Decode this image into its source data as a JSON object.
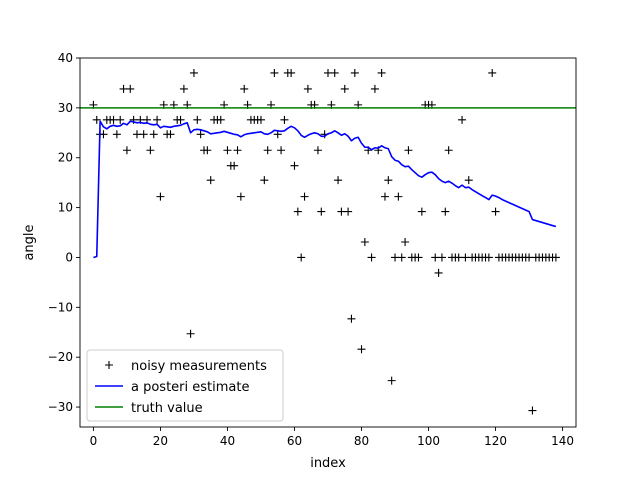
{
  "chart_data": {
    "type": "line",
    "title": "",
    "xlabel": "index",
    "ylabel": "angle",
    "xlim": [
      -4,
      144
    ],
    "ylim": [
      -34,
      40
    ],
    "xticks": [
      0,
      20,
      40,
      60,
      80,
      100,
      120,
      140
    ],
    "yticks": [
      -30,
      -20,
      -10,
      0,
      10,
      20,
      30,
      40
    ],
    "grid": false,
    "legend_position": "lower-left",
    "series": [
      {
        "name": "noisy measurements",
        "kind": "scatter",
        "marker": "+",
        "color": "#000000",
        "points": [
          [
            0,
            30.6
          ],
          [
            1,
            27.6
          ],
          [
            2,
            24.7
          ],
          [
            3,
            24.7
          ],
          [
            4,
            27.6
          ],
          [
            5,
            27.6
          ],
          [
            6,
            27.6
          ],
          [
            7,
            24.7
          ],
          [
            8,
            27.6
          ],
          [
            9,
            33.8
          ],
          [
            10,
            21.5
          ],
          [
            11,
            33.8
          ],
          [
            12,
            27.6
          ],
          [
            13,
            24.7
          ],
          [
            14,
            27.6
          ],
          [
            15,
            24.7
          ],
          [
            16,
            27.6
          ],
          [
            17,
            21.5
          ],
          [
            18,
            24.7
          ],
          [
            19,
            27.6
          ],
          [
            20,
            12.2
          ],
          [
            21,
            30.6
          ],
          [
            22,
            24.7
          ],
          [
            23,
            24.7
          ],
          [
            24,
            30.6
          ],
          [
            25,
            27.6
          ],
          [
            26,
            27.6
          ],
          [
            27,
            33.8
          ],
          [
            28,
            30.6
          ],
          [
            29,
            -15.3
          ],
          [
            30,
            37.0
          ],
          [
            31,
            27.6
          ],
          [
            32,
            24.7
          ],
          [
            33,
            21.5
          ],
          [
            34,
            21.5
          ],
          [
            35,
            15.5
          ],
          [
            36,
            27.6
          ],
          [
            37,
            27.6
          ],
          [
            38,
            27.6
          ],
          [
            39,
            30.6
          ],
          [
            40,
            21.5
          ],
          [
            41,
            18.4
          ],
          [
            42,
            18.4
          ],
          [
            43,
            21.5
          ],
          [
            44,
            12.2
          ],
          [
            45,
            33.8
          ],
          [
            46,
            30.6
          ],
          [
            47,
            27.6
          ],
          [
            48,
            27.6
          ],
          [
            49,
            27.6
          ],
          [
            50,
            27.6
          ],
          [
            51,
            15.5
          ],
          [
            52,
            21.5
          ],
          [
            53,
            30.6
          ],
          [
            54,
            37.0
          ],
          [
            55,
            24.7
          ],
          [
            56,
            21.5
          ],
          [
            57,
            27.6
          ],
          [
            58,
            37.0
          ],
          [
            59,
            37.0
          ],
          [
            60,
            18.4
          ],
          [
            61,
            9.2
          ],
          [
            62,
            0
          ],
          [
            63,
            12.2
          ],
          [
            64,
            33.8
          ],
          [
            65,
            30.6
          ],
          [
            66,
            30.6
          ],
          [
            67,
            21.5
          ],
          [
            68,
            9.2
          ],
          [
            69,
            24.7
          ],
          [
            70,
            37.0
          ],
          [
            71,
            30.6
          ],
          [
            72,
            37.0
          ],
          [
            73,
            15.5
          ],
          [
            74,
            9.2
          ],
          [
            75,
            33.8
          ],
          [
            76,
            9.2
          ],
          [
            77,
            -12.3
          ],
          [
            78,
            37.0
          ],
          [
            79,
            30.6
          ],
          [
            80,
            -18.4
          ],
          [
            81,
            3.1
          ],
          [
            82,
            21.5
          ],
          [
            83,
            0
          ],
          [
            84,
            33.8
          ],
          [
            85,
            21.5
          ],
          [
            86,
            37.0
          ],
          [
            87,
            12.2
          ],
          [
            88,
            15.5
          ],
          [
            89,
            -24.7
          ],
          [
            90,
            0
          ],
          [
            91,
            12.2
          ],
          [
            92,
            0
          ],
          [
            93,
            3.1
          ],
          [
            94,
            21.5
          ],
          [
            95,
            0
          ],
          [
            96,
            0
          ],
          [
            97,
            0
          ],
          [
            98,
            9.2
          ],
          [
            99,
            30.6
          ],
          [
            100,
            30.6
          ],
          [
            101,
            30.6
          ],
          [
            102,
            0
          ],
          [
            103,
            -3.1
          ],
          [
            104,
            0
          ],
          [
            105,
            9.2
          ],
          [
            106,
            21.5
          ],
          [
            107,
            0
          ],
          [
            108,
            0
          ],
          [
            109,
            0
          ],
          [
            110,
            27.6
          ],
          [
            111,
            0
          ],
          [
            112,
            15.5
          ],
          [
            113,
            0
          ],
          [
            114,
            0
          ],
          [
            115,
            0
          ],
          [
            116,
            0
          ],
          [
            117,
            0
          ],
          [
            118,
            0
          ],
          [
            119,
            37.0
          ],
          [
            120,
            9.2
          ],
          [
            121,
            0
          ],
          [
            122,
            0
          ],
          [
            123,
            0
          ],
          [
            124,
            0
          ],
          [
            125,
            0
          ],
          [
            126,
            0
          ],
          [
            127,
            0
          ],
          [
            128,
            0
          ],
          [
            129,
            0
          ],
          [
            130,
            0
          ],
          [
            131,
            -30.7
          ],
          [
            132,
            0
          ],
          [
            133,
            0
          ],
          [
            134,
            0
          ],
          [
            135,
            0
          ],
          [
            136,
            0
          ],
          [
            137,
            0
          ],
          [
            138,
            0
          ]
        ]
      },
      {
        "name": "a posteri estimate",
        "kind": "line",
        "color": "#0000ff",
        "points": [
          [
            0,
            0
          ],
          [
            1,
            0.2
          ],
          [
            2,
            27.3
          ],
          [
            3,
            26.2
          ],
          [
            4,
            25.8
          ],
          [
            5,
            26.3
          ],
          [
            6,
            26.5
          ],
          [
            7,
            26.3
          ],
          [
            8,
            26.4
          ],
          [
            9,
            26.9
          ],
          [
            10,
            26.6
          ],
          [
            11,
            27.3
          ],
          [
            12,
            27.2
          ],
          [
            13,
            27.0
          ],
          [
            14,
            27.1
          ],
          [
            15,
            26.9
          ],
          [
            16,
            27.0
          ],
          [
            17,
            26.7
          ],
          [
            18,
            26.6
          ],
          [
            19,
            26.7
          ],
          [
            20,
            26.0
          ],
          [
            21,
            26.3
          ],
          [
            22,
            26.2
          ],
          [
            23,
            26.1
          ],
          [
            24,
            26.3
          ],
          [
            25,
            26.4
          ],
          [
            26,
            26.5
          ],
          [
            27,
            26.8
          ],
          [
            28,
            27.0
          ],
          [
            29,
            25.0
          ],
          [
            30,
            25.6
          ],
          [
            31,
            25.7
          ],
          [
            32,
            25.6
          ],
          [
            33,
            25.4
          ],
          [
            34,
            25.2
          ],
          [
            35,
            24.8
          ],
          [
            36,
            24.9
          ],
          [
            37,
            25.0
          ],
          [
            38,
            25.1
          ],
          [
            39,
            25.3
          ],
          [
            40,
            25.1
          ],
          [
            41,
            24.9
          ],
          [
            42,
            24.7
          ],
          [
            43,
            24.6
          ],
          [
            44,
            24.2
          ],
          [
            45,
            24.6
          ],
          [
            46,
            24.8
          ],
          [
            47,
            24.9
          ],
          [
            48,
            25.0
          ],
          [
            49,
            25.1
          ],
          [
            50,
            25.2
          ],
          [
            51,
            24.8
          ],
          [
            52,
            24.7
          ],
          [
            53,
            25.0
          ],
          [
            54,
            25.5
          ],
          [
            55,
            25.4
          ],
          [
            56,
            25.3
          ],
          [
            57,
            25.4
          ],
          [
            58,
            25.9
          ],
          [
            59,
            26.3
          ],
          [
            60,
            26.0
          ],
          [
            61,
            25.4
          ],
          [
            62,
            24.5
          ],
          [
            63,
            24.1
          ],
          [
            64,
            24.5
          ],
          [
            65,
            24.8
          ],
          [
            66,
            25.0
          ],
          [
            67,
            24.8
          ],
          [
            68,
            24.3
          ],
          [
            69,
            24.3
          ],
          [
            70,
            24.8
          ],
          [
            71,
            25.0
          ],
          [
            72,
            25.4
          ],
          [
            73,
            25.0
          ],
          [
            74,
            24.5
          ],
          [
            75,
            24.8
          ],
          [
            76,
            24.3
          ],
          [
            77,
            23.4
          ],
          [
            78,
            23.9
          ],
          [
            79,
            24.1
          ],
          [
            80,
            22.9
          ],
          [
            81,
            22.1
          ],
          [
            82,
            22.1
          ],
          [
            83,
            21.6
          ],
          [
            84,
            22.0
          ],
          [
            85,
            21.9
          ],
          [
            86,
            22.4
          ],
          [
            87,
            22.0
          ],
          [
            88,
            21.8
          ],
          [
            89,
            20.2
          ],
          [
            90,
            19.5
          ],
          [
            91,
            19.3
          ],
          [
            92,
            18.6
          ],
          [
            93,
            18.2
          ],
          [
            94,
            18.3
          ],
          [
            95,
            17.6
          ],
          [
            96,
            17.0
          ],
          [
            97,
            16.4
          ],
          [
            98,
            16.1
          ],
          [
            99,
            16.6
          ],
          [
            100,
            17.0
          ],
          [
            101,
            17.1
          ],
          [
            102,
            16.6
          ],
          [
            103,
            15.8
          ],
          [
            104,
            15.3
          ],
          [
            105,
            15.0
          ],
          [
            106,
            15.3
          ],
          [
            107,
            14.9
          ],
          [
            108,
            14.4
          ],
          [
            109,
            14.0
          ],
          [
            110,
            14.5
          ],
          [
            111,
            14.0
          ],
          [
            112,
            14.1
          ],
          [
            113,
            13.6
          ],
          [
            114,
            13.2
          ],
          [
            115,
            12.8
          ],
          [
            116,
            12.4
          ],
          [
            117,
            12.0
          ],
          [
            118,
            11.6
          ],
          [
            119,
            12.5
          ],
          [
            120,
            12.3
          ],
          [
            121,
            12.0
          ],
          [
            122,
            11.6
          ],
          [
            123,
            11.3
          ],
          [
            124,
            11.0
          ],
          [
            125,
            10.7
          ],
          [
            126,
            10.4
          ],
          [
            127,
            10.1
          ],
          [
            128,
            9.8
          ],
          [
            129,
            9.5
          ],
          [
            130,
            9.2
          ],
          [
            131,
            7.6
          ],
          [
            132,
            7.4
          ],
          [
            133,
            7.2
          ],
          [
            134,
            7.0
          ],
          [
            135,
            6.8
          ],
          [
            136,
            6.6
          ],
          [
            137,
            6.4
          ],
          [
            138,
            6.2
          ]
        ]
      },
      {
        "name": "truth value",
        "kind": "hline",
        "color": "#008000",
        "value": 30
      }
    ]
  }
}
